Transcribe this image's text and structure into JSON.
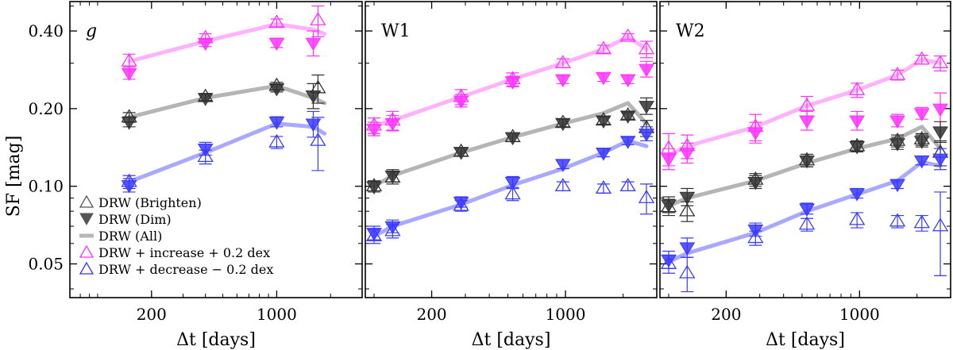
{
  "chart_data": {
    "type": "scatter",
    "y_axis": {
      "label": "SF [mag]",
      "scale": "log",
      "ticks": [
        0.05,
        0.1,
        0.2,
        0.4
      ],
      "tick_labels": [
        "0.05",
        "0.10",
        "0.20",
        "0.40"
      ],
      "range": [
        0.037,
        0.52
      ]
    },
    "x_axis": {
      "label": "Δt [days]",
      "scale": "log",
      "ticks": [
        200,
        1000
      ],
      "tick_labels": [
        "200",
        "1000"
      ]
    },
    "legend": {
      "position": "lower-left of first panel",
      "entries": [
        {
          "label": "DRW (Brighten)",
          "color": "#555555",
          "marker": "open-triangle-up"
        },
        {
          "label": "DRW (Dim)",
          "color": "#555555",
          "marker": "filled-triangle-down"
        },
        {
          "label": "DRW (All)",
          "color": "#b8b8b8",
          "marker": "line"
        },
        {
          "label": "DRW + increase + 0.2 dex",
          "color": "#ff33ff",
          "marker": "open-triangle-up"
        },
        {
          "label": "DRW + decrease − 0.2 dex",
          "color": "#3333ff",
          "marker": "open-triangle-up"
        }
      ]
    },
    "colors": {
      "black": "#333333",
      "black_line": "#b5b5b5",
      "magenta": "#ff33ff",
      "magenta_line": "#ffb3ff",
      "blue": "#3a3aff",
      "blue_line": "#a9a9ff"
    },
    "panels": [
      {
        "label": "g",
        "italic": true,
        "xlim": [
          70,
          3000
        ],
        "series": [
          {
            "group": "magenta",
            "kind": "line",
            "x": [
              150,
              400,
              1000,
              1600,
              1850
            ],
            "y": [
              0.305,
              0.365,
              0.425,
              0.405,
              0.39
            ]
          },
          {
            "group": "magenta",
            "kind": "brighten",
            "x": [
              150,
              400,
              1000,
              1700
            ],
            "y": [
              0.305,
              0.375,
              0.43,
              0.44
            ],
            "err": [
              0.02,
              0.015,
              0.015,
              0.06
            ]
          },
          {
            "group": "magenta",
            "kind": "dim",
            "x": [
              150,
              400,
              1000,
              1600
            ],
            "y": [
              0.275,
              0.36,
              0.36,
              0.36
            ],
            "err": [
              0.015,
              0.012,
              0.015,
              0.04
            ]
          },
          {
            "group": "black",
            "kind": "line",
            "x": [
              150,
              400,
              1000,
              1600,
              1850
            ],
            "y": [
              0.185,
              0.22,
              0.245,
              0.22,
              0.21
            ]
          },
          {
            "group": "black",
            "kind": "brighten",
            "x": [
              150,
              400,
              1000,
              1700
            ],
            "y": [
              0.185,
              0.222,
              0.245,
              0.24
            ],
            "err": [
              0.008,
              0.007,
              0.008,
              0.03
            ]
          },
          {
            "group": "black",
            "kind": "dim",
            "x": [
              150,
              400,
              1000,
              1600
            ],
            "y": [
              0.178,
              0.22,
              0.24,
              0.225
            ],
            "err": [
              0.008,
              0.007,
              0.008,
              0.025
            ]
          },
          {
            "group": "blue",
            "kind": "line",
            "x": [
              150,
              400,
              1000,
              1600,
              1850
            ],
            "y": [
              0.104,
              0.135,
              0.175,
              0.17,
              0.16
            ]
          },
          {
            "group": "blue",
            "kind": "brighten",
            "x": [
              150,
              400,
              1000,
              1700
            ],
            "y": [
              0.104,
              0.13,
              0.148,
              0.15
            ],
            "err": [
              0.006,
              0.008,
              0.008,
              0.035
            ]
          },
          {
            "group": "blue",
            "kind": "dim",
            "x": [
              150,
              400,
              1000,
              1600
            ],
            "y": [
              0.101,
              0.14,
              0.178,
              0.175
            ],
            "err": [
              0.006,
              0.008,
              0.008,
              0.02
            ]
          }
        ]
      },
      {
        "label": "W1",
        "italic": false,
        "xlim": [
          90,
          3000
        ],
        "series": [
          {
            "group": "magenta",
            "kind": "line",
            "x": [
              100,
              125,
              285,
              530,
              970,
              1580,
              2120,
              2650
            ],
            "y": [
              0.172,
              0.18,
              0.222,
              0.26,
              0.3,
              0.34,
              0.38,
              0.34
            ]
          },
          {
            "group": "magenta",
            "kind": "brighten",
            "x": [
              100,
              125,
              285,
              530,
              970,
              1580,
              2120,
              2650
            ],
            "y": [
              0.172,
              0.18,
              0.222,
              0.26,
              0.3,
              0.34,
              0.38,
              0.34
            ],
            "err": [
              0.012,
              0.015,
              0.015,
              0.015,
              0.012,
              0.012,
              0.01,
              0.025
            ]
          },
          {
            "group": "magenta",
            "kind": "dim",
            "x": [
              100,
              125,
              285,
              530,
              970,
              1580,
              2120,
              2650
            ],
            "y": [
              0.167,
              0.176,
              0.215,
              0.255,
              0.26,
              0.265,
              0.26,
              0.285
            ],
            "err": [
              0.01,
              0.012,
              0.012,
              0.012,
              0.01,
              0.01,
              0.01,
              0.02
            ]
          },
          {
            "group": "black",
            "kind": "line",
            "x": [
              100,
              125,
              285,
              530,
              970,
              1580,
              2120,
              2650
            ],
            "y": [
              0.1,
              0.11,
              0.135,
              0.155,
              0.175,
              0.192,
              0.21,
              0.175
            ]
          },
          {
            "group": "black",
            "kind": "brighten",
            "x": [
              100,
              125,
              285,
              530,
              970,
              1580,
              2120,
              2650
            ],
            "y": [
              0.1,
              0.108,
              0.136,
              0.155,
              0.176,
              0.18,
              0.188,
              0.168
            ],
            "err": [
              0.005,
              0.006,
              0.005,
              0.006,
              0.006,
              0.006,
              0.006,
              0.012
            ]
          },
          {
            "group": "black",
            "kind": "dim",
            "x": [
              100,
              125,
              285,
              530,
              970,
              1580,
              2120,
              2650
            ],
            "y": [
              0.1,
              0.11,
              0.136,
              0.155,
              0.176,
              0.18,
              0.188,
              0.205
            ],
            "err": [
              0.005,
              0.006,
              0.005,
              0.006,
              0.006,
              0.006,
              0.006,
              0.015
            ]
          },
          {
            "group": "blue",
            "kind": "line",
            "x": [
              100,
              125,
              285,
              530,
              970,
              1580,
              2120,
              2650
            ],
            "y": [
              0.064,
              0.07,
              0.085,
              0.101,
              0.117,
              0.135,
              0.15,
              0.143
            ]
          },
          {
            "group": "blue",
            "kind": "brighten",
            "x": [
              100,
              125,
              285,
              530,
              970,
              1580,
              2120,
              2650
            ],
            "y": [
              0.064,
              0.067,
              0.084,
              0.093,
              0.1,
              0.098,
              0.1,
              0.09
            ],
            "err": [
              0.004,
              0.004,
              0.004,
              0.005,
              0.004,
              0.004,
              0.004,
              0.012
            ]
          },
          {
            "group": "blue",
            "kind": "dim",
            "x": [
              100,
              125,
              285,
              530,
              970,
              1580,
              2120,
              2650
            ],
            "y": [
              0.066,
              0.07,
              0.087,
              0.104,
              0.122,
              0.135,
              0.15,
              0.16
            ],
            "err": [
              0.004,
              0.004,
              0.004,
              0.005,
              0.005,
              0.005,
              0.005,
              0.01
            ]
          }
        ]
      },
      {
        "label": "W2",
        "italic": false,
        "xlim": [
          90,
          3000
        ],
        "series": [
          {
            "group": "magenta",
            "kind": "line",
            "x": [
              100,
              125,
              285,
              530,
              970,
              1580,
              2120,
              2650
            ],
            "y": [
              0.132,
              0.143,
              0.17,
              0.205,
              0.236,
              0.27,
              0.31,
              0.3
            ]
          },
          {
            "group": "magenta",
            "kind": "brighten",
            "x": [
              100,
              125,
              285,
              530,
              970,
              1580,
              2120,
              2650
            ],
            "y": [
              0.14,
              0.143,
              0.17,
              0.205,
              0.236,
              0.27,
              0.31,
              0.3
            ],
            "err": [
              0.02,
              0.015,
              0.02,
              0.018,
              0.015,
              0.012,
              0.012,
              0.02
            ]
          },
          {
            "group": "magenta",
            "kind": "dim",
            "x": [
              100,
              125,
              285,
              530,
              970,
              1580,
              2120,
              2650
            ],
            "y": [
              0.128,
              0.135,
              0.162,
              0.18,
              0.18,
              0.18,
              0.192,
              0.2
            ],
            "err": [
              0.012,
              0.012,
              0.015,
              0.015,
              0.015,
              0.01,
              0.01,
              0.03
            ]
          },
          {
            "group": "black",
            "kind": "line",
            "x": [
              100,
              125,
              285,
              530,
              970,
              1580,
              2120,
              2650
            ],
            "y": [
              0.084,
              0.09,
              0.105,
              0.123,
              0.14,
              0.153,
              0.17,
              0.14
            ]
          },
          {
            "group": "black",
            "kind": "brighten",
            "x": [
              100,
              125,
              285,
              530,
              970,
              1580,
              2120,
              2650
            ],
            "y": [
              0.083,
              0.08,
              0.106,
              0.126,
              0.143,
              0.15,
              0.152,
              0.135
            ],
            "err": [
              0.006,
              0.007,
              0.006,
              0.007,
              0.007,
              0.008,
              0.008,
              0.015
            ]
          },
          {
            "group": "black",
            "kind": "dim",
            "x": [
              100,
              125,
              285,
              530,
              970,
              1580,
              2120,
              2650
            ],
            "y": [
              0.085,
              0.091,
              0.104,
              0.126,
              0.143,
              0.147,
              0.15,
              0.163
            ],
            "err": [
              0.006,
              0.007,
              0.006,
              0.007,
              0.007,
              0.008,
              0.008,
              0.015
            ]
          },
          {
            "group": "blue",
            "kind": "line",
            "x": [
              100,
              125,
              285,
              530,
              970,
              1580,
              2120,
              2650
            ],
            "y": [
              0.051,
              0.055,
              0.066,
              0.08,
              0.093,
              0.105,
              0.124,
              0.12
            ]
          },
          {
            "group": "blue",
            "kind": "brighten",
            "x": [
              100,
              125,
              285,
              530,
              970,
              1580,
              2120,
              2650
            ],
            "y": [
              0.05,
              0.046,
              0.063,
              0.071,
              0.074,
              0.073,
              0.072,
              0.07
            ],
            "err": [
              0.004,
              0.007,
              0.004,
              0.004,
              0.005,
              0.004,
              0.005,
              0.025
            ]
          },
          {
            "group": "blue",
            "kind": "dim",
            "x": [
              100,
              125,
              285,
              530,
              970,
              1580,
              2120,
              2650
            ],
            "y": [
              0.052,
              0.058,
              0.068,
              0.082,
              0.094,
              0.102,
              0.126,
              0.128
            ],
            "err": [
              0.004,
              0.005,
              0.004,
              0.004,
              0.004,
              0.004,
              0.005,
              0.012
            ]
          }
        ]
      }
    ]
  }
}
